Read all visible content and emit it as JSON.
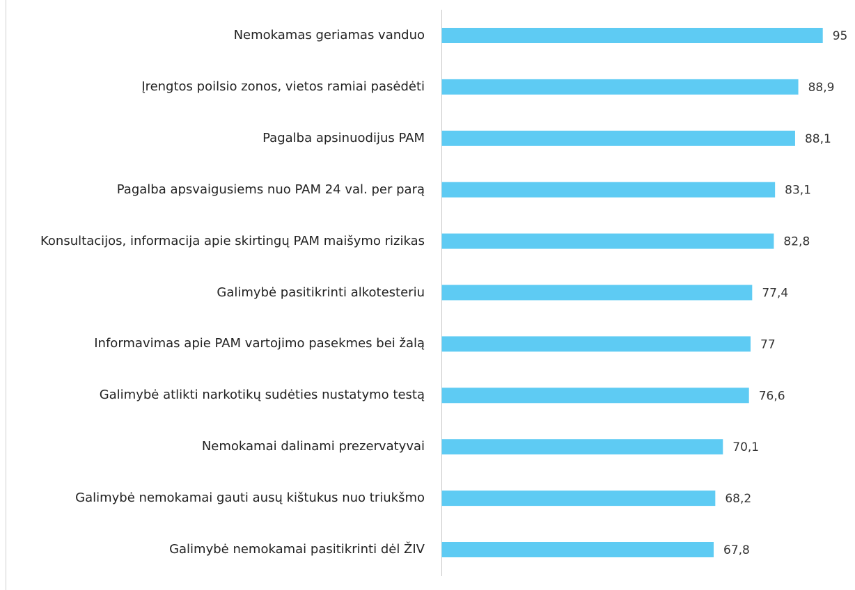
{
  "chart_data": {
    "type": "barh",
    "categories": [
      "Nemokamas geriamas vanduo",
      "Įrengtos poilsio zonos, vietos ramiai pasėdėti",
      "Pagalba apsinuodijus PAM",
      "Pagalba apsvaigusiems  nuo PAM 24 val. per parą",
      "Konsultacijos, informacija apie skirtingų PAM maišymo rizikas",
      "Galimybė pasitikrinti alkotesteriu",
      "Informavimas apie PAM vartojimo pasekmes bei žalą",
      "Galimybė atlikti narkotikų sudėties nustatymo testą",
      "Nemokamai dalinami prezervatyvai",
      "Galimybė nemokamai gauti ausų kištukus nuo triukšmo",
      "Galimybė nemokamai pasitikrinti dėl ŽIV"
    ],
    "values": [
      95,
      88.9,
      88.1,
      83.1,
      82.8,
      77.4,
      77,
      76.6,
      70.1,
      68.2,
      67.8
    ],
    "value_labels": [
      "95",
      "88,9",
      "88,1",
      "83,1",
      "82,8",
      "77,4",
      "77",
      "76,6",
      "70,1",
      "68,2",
      "67,8"
    ],
    "color": "#5ecbf3",
    "xlim": [
      0,
      100
    ]
  }
}
